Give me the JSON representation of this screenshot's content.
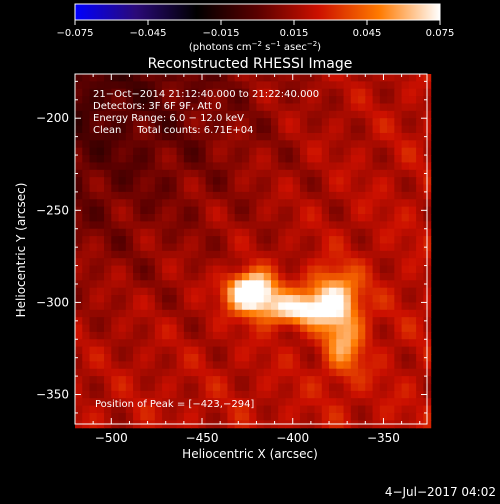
{
  "chart_data": {
    "type": "heatmap",
    "title": "Reconstructed RHESSI Image",
    "xlabel": "Heliocentric X (arcsec)",
    "ylabel": "Heliocentric Y (arcsec)",
    "xlim": [
      -520,
      -326
    ],
    "ylim": [
      -366,
      -176
    ],
    "x_ticks": [
      {
        "value": -500,
        "label": "−500"
      },
      {
        "value": -450,
        "label": "−450"
      },
      {
        "value": -400,
        "label": "−400"
      },
      {
        "value": -350,
        "label": "−350"
      }
    ],
    "y_ticks": [
      {
        "value": -200,
        "label": "−200"
      },
      {
        "value": -250,
        "label": "−250"
      },
      {
        "value": -300,
        "label": "−300"
      },
      {
        "value": -350,
        "label": "−350"
      }
    ],
    "colorbar": {
      "min": -0.075,
      "max": 0.075,
      "ticks": [
        {
          "value": -0.075,
          "label": "−0.075"
        },
        {
          "value": -0.045,
          "label": "−0.045"
        },
        {
          "value": -0.015,
          "label": "−0.015"
        },
        {
          "value": 0.015,
          "label": "0.015"
        },
        {
          "value": 0.045,
          "label": "0.045"
        },
        {
          "value": 0.075,
          "label": "0.075"
        }
      ],
      "unit_prefix": "(photons cm",
      "unit_exp1": "−2",
      "unit_mid": " s",
      "unit_exp2": "−1",
      "unit_mid2": " asec",
      "unit_exp3": "−2",
      "unit_suffix": ")",
      "stops": [
        "#0000ff",
        "#2a0a78",
        "#000000",
        "#5a0000",
        "#cc1000",
        "#ff7a00",
        "#ffffff"
      ]
    },
    "annotations": [
      "21−Oct−2014 21:12:40.000 to 21:22:40.000",
      "Detectors: 3F 6F 9F, Att 0",
      "Energy Range: 6.0 − 12.0 keV",
      "Clean     Total counts: 6.71E+04"
    ],
    "peak_label": "Position of Peak = [−423,−294]",
    "peak": [
      -423,
      -294
    ],
    "sources": [
      {
        "x": -423,
        "y": -294,
        "sx": 9,
        "sy": 7,
        "amp": 0.085
      },
      {
        "x": -400,
        "y": -304,
        "sx": 14,
        "sy": 6,
        "amp": 0.05
      },
      {
        "x": -378,
        "y": -296,
        "sx": 10,
        "sy": 10,
        "amp": 0.045
      },
      {
        "x": -372,
        "y": -320,
        "sx": 8,
        "sy": 14,
        "amp": 0.035
      }
    ],
    "background": {
      "base": 0.022,
      "gradient_from": [
        -520,
        -176
      ],
      "negative_amp": -0.012,
      "ripple_amp": 0.008
    }
  },
  "footer_date": "4−Jul−2017 04:02"
}
